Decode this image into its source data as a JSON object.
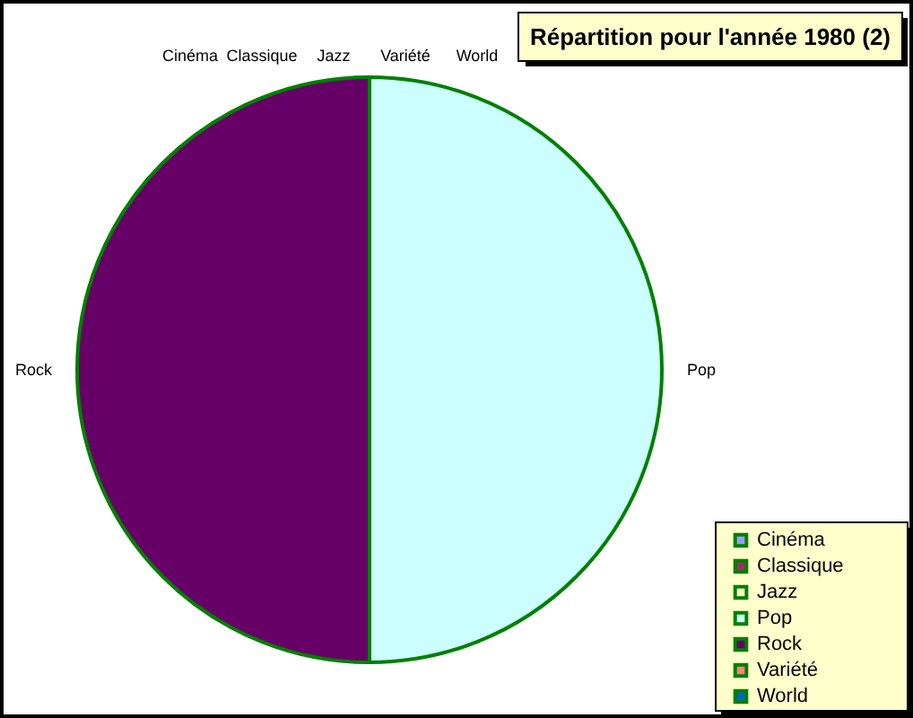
{
  "chart_data": {
    "type": "pie",
    "title": "Répartition pour l'année 1980 (2)",
    "categories": [
      "Cinéma",
      "Classique",
      "Jazz",
      "Pop",
      "Rock",
      "Variété",
      "World"
    ],
    "values": [
      0,
      0,
      0,
      50,
      50,
      0,
      0
    ],
    "colors": [
      "#9999ff",
      "#993366",
      "#ffffcc",
      "#ccffff",
      "#660066",
      "#ff8080",
      "#0066cc"
    ],
    "legend": "bottom right"
  }
}
